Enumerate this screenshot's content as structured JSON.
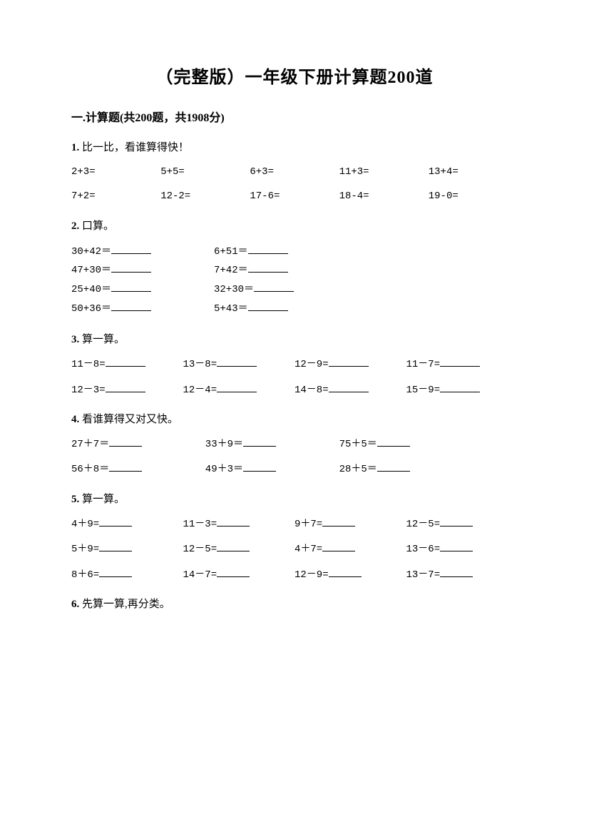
{
  "title": "（完整版）一年级下册计算题200道",
  "section": "一.计算题(共200题，共1908分)",
  "q1": {
    "no": "1.",
    "text": " 比一比，看谁算得快！",
    "r1": [
      "2+3=",
      "5+5=",
      "6+3=",
      "11+3=",
      "13+4="
    ],
    "r2": [
      "7+2=",
      "12-2=",
      "17-6=",
      "18-4=",
      "19-0="
    ]
  },
  "q2": {
    "no": "2.",
    "text": " 口算。",
    "rows": [
      [
        "30+42＝",
        "6+51＝"
      ],
      [
        "47+30＝",
        "7+42＝"
      ],
      [
        "25+40＝",
        "32+30＝"
      ],
      [
        "50+36＝",
        "5+43＝"
      ]
    ]
  },
  "q3": {
    "no": "3.",
    "text": " 算一算。",
    "r1": [
      "11－8=",
      "13－8=",
      "12－9=",
      "11－7="
    ],
    "r2": [
      "12－3=",
      "12－4=",
      "14－8=",
      "15－9="
    ]
  },
  "q4": {
    "no": "4.",
    "text": " 看谁算得又对又快。",
    "r1": [
      "27＋7＝",
      "33＋9＝",
      "75＋5＝"
    ],
    "r2": [
      "56＋8＝",
      "49＋3＝",
      "28＋5＝"
    ]
  },
  "q5": {
    "no": "5.",
    "text": " 算一算。",
    "r1": [
      "4＋9=",
      "11－3=",
      "9＋7=",
      "12－5="
    ],
    "r2": [
      "5＋9=",
      "12－5=",
      "4＋7=",
      "13－6="
    ],
    "r3": [
      "8＋6=",
      "14－7=",
      "12－9=",
      "13－7="
    ]
  },
  "q6": {
    "no": "6.",
    "text": " 先算一算,再分类。"
  }
}
